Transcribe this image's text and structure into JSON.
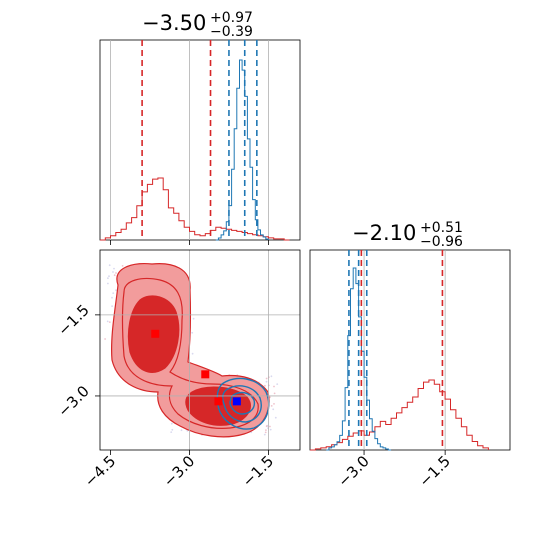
{
  "chart_data": {
    "type": "corner",
    "parameters": [
      {
        "title_parts": {
          "median": "−3.50",
          "plus": "+0.97",
          "minus": "−0.39"
        },
        "range": [
          -4.7,
          -0.9
        ],
        "ticks": [
          {
            "value": -4.5,
            "label": "−4.5"
          },
          {
            "value": -3.0,
            "label": "−3.0"
          },
          {
            "value": -1.5,
            "label": "−1.5"
          }
        ],
        "red_quantiles": [
          -3.9,
          -2.6
        ],
        "blue_quantiles": [
          -2.25,
          -1.95,
          -1.72
        ],
        "red_hist": {
          "edges": [
            -4.7,
            -4.6,
            -4.5,
            -4.4,
            -4.3,
            -4.2,
            -4.1,
            -4.0,
            -3.9,
            -3.8,
            -3.7,
            -3.6,
            -3.5,
            -3.4,
            -3.3,
            -3.2,
            -3.1,
            -3.0,
            -2.9,
            -2.8,
            -2.7,
            -2.6,
            -2.5,
            -2.4,
            -2.3,
            -2.2,
            -2.1,
            -2.0,
            -1.9,
            -1.8,
            -1.7,
            -1.6,
            -1.5,
            -1.4,
            -1.3,
            -1.2,
            -1.1
          ],
          "counts": [
            0,
            2,
            4,
            7,
            10,
            16,
            21,
            32,
            45,
            52,
            57,
            58,
            47,
            30,
            25,
            18,
            12,
            8,
            5,
            4,
            6,
            9,
            12,
            11,
            10,
            9,
            8,
            7,
            6,
            5,
            4,
            3,
            2,
            1,
            1,
            0
          ]
        },
        "blue_hist": {
          "edges": [
            -2.5,
            -2.45,
            -2.4,
            -2.35,
            -2.3,
            -2.25,
            -2.2,
            -2.15,
            -2.1,
            -2.05,
            -2.0,
            -1.95,
            -1.9,
            -1.85,
            -1.8,
            -1.75,
            -1.7,
            -1.65,
            -1.6,
            -1.55,
            -1.5
          ],
          "counts": [
            0,
            2,
            5,
            9,
            18,
            34,
            70,
            110,
            150,
            178,
            168,
            142,
            100,
            72,
            40,
            20,
            10,
            5,
            3,
            1
          ]
        }
      },
      {
        "title_parts": {
          "median": "−2.10",
          "plus": "+0.51",
          "minus": "−0.96"
        },
        "range": [
          -4.0,
          -0.3
        ],
        "ticks": [
          {
            "value": -3.0,
            "label": "−3.0"
          },
          {
            "value": -1.5,
            "label": "−1.5"
          }
        ],
        "red_quantiles": [
          -3.05,
          -1.55
        ],
        "blue_quantiles": [
          -3.28,
          -3.1,
          -2.95
        ],
        "red_hist": {
          "edges": [
            -4.0,
            -3.9,
            -3.8,
            -3.7,
            -3.6,
            -3.5,
            -3.4,
            -3.3,
            -3.2,
            -3.1,
            -3.0,
            -2.9,
            -2.8,
            -2.7,
            -2.6,
            -2.5,
            -2.4,
            -2.3,
            -2.2,
            -2.1,
            -2.0,
            -1.9,
            -1.8,
            -1.7,
            -1.6,
            -1.5,
            -1.4,
            -1.3,
            -1.2,
            -1.1,
            -1.0,
            -0.9,
            -0.8,
            -0.7
          ],
          "counts": [
            0,
            1,
            2,
            3,
            5,
            7,
            10,
            13,
            16,
            18,
            14,
            17,
            22,
            27,
            24,
            30,
            35,
            40,
            45,
            50,
            58,
            64,
            66,
            62,
            55,
            48,
            38,
            30,
            22,
            14,
            8,
            4,
            2
          ]
        },
        "blue_hist": {
          "edges": [
            -3.7,
            -3.65,
            -3.6,
            -3.55,
            -3.5,
            -3.45,
            -3.4,
            -3.35,
            -3.3,
            -3.25,
            -3.2,
            -3.15,
            -3.1,
            -3.05,
            -3.0,
            -2.95,
            -2.9,
            -2.85,
            -2.8,
            -2.75,
            -2.7,
            -2.65,
            -2.6,
            -2.55,
            -2.5
          ],
          "counts": [
            0,
            2,
            3,
            5,
            8,
            14,
            28,
            60,
            110,
            155,
            175,
            160,
            128,
            95,
            70,
            48,
            30,
            18,
            11,
            6,
            3,
            2,
            1,
            0
          ]
        }
      }
    ],
    "joint": {
      "truth_lines_x": [
        -3.0,
        -1.5
      ],
      "truth_lines_y": [
        -3.0,
        -1.5
      ],
      "red_points": [
        {
          "x": -3.65,
          "y": -1.85
        },
        {
          "x": -2.7,
          "y": -2.6
        },
        {
          "x": -2.45,
          "y": -3.1
        }
      ],
      "blue_points": [
        {
          "x": -2.1,
          "y": -3.1
        }
      ]
    },
    "colors": {
      "red": "#d62728",
      "red_fill_light": "#f29c9c",
      "red_fill_dark": "#d62728",
      "blue": "#1f77b4",
      "dark_blue_marker": "#0000ff",
      "red_marker": "#ff0000",
      "grid": "#b0b0b0"
    }
  }
}
